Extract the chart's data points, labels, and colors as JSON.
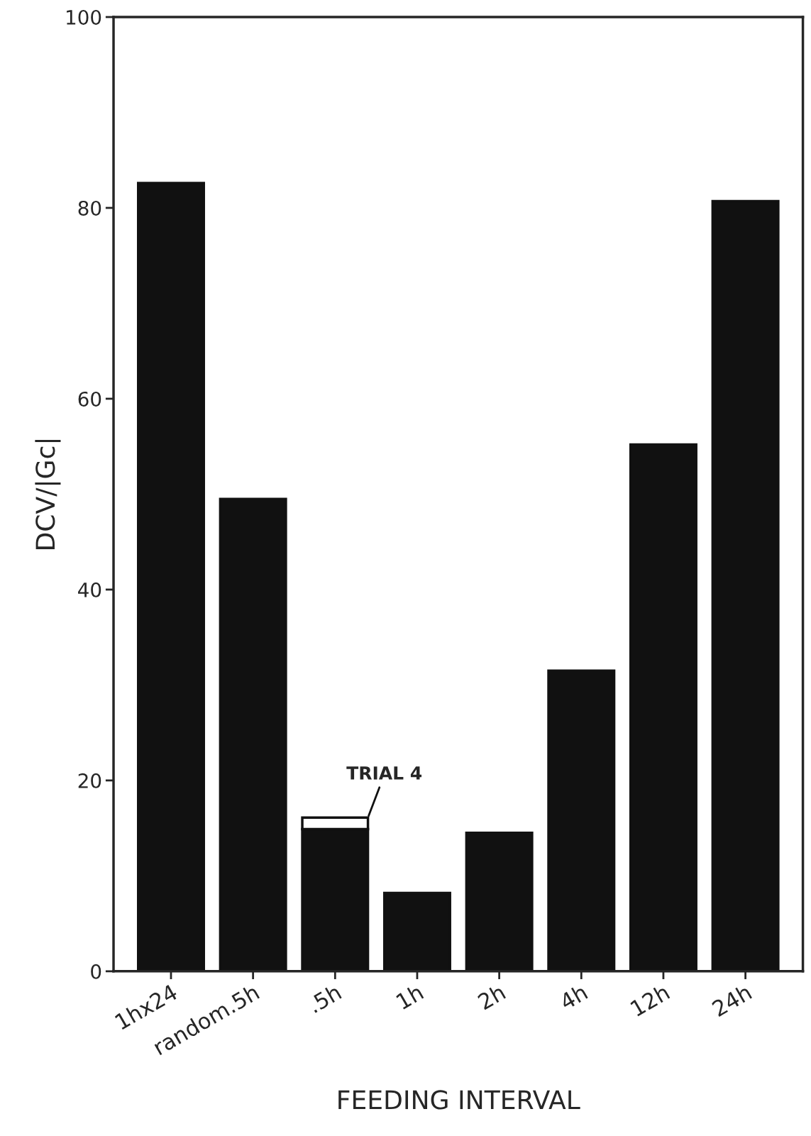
{
  "chart_data": {
    "type": "bar",
    "xlabel": "FEEDING INTERVAL",
    "ylabel": "DCV/|Gc|",
    "categories": [
      "1hx24",
      "random.5h",
      ".5h",
      "1h",
      "2h",
      "4h",
      "12h",
      "24h"
    ],
    "stacked": true,
    "series": [
      {
        "color": "#111111",
        "values": [
          82.6,
          49.5,
          14.9,
          8.2,
          14.5,
          31.5,
          55.2,
          80.7
        ]
      },
      {
        "color": "#ffffff",
        "values": [
          null,
          null,
          1.2,
          null,
          null,
          null,
          null,
          null
        ]
      }
    ],
    "ylim": [
      0,
      100
    ],
    "yticks": [
      0,
      20,
      40,
      60,
      80,
      100
    ],
    "annotations": [
      {
        "text": "TRIAL 4",
        "x": ".5h",
        "y": 16.1
      }
    ],
    "grid": false,
    "legend": false
  }
}
